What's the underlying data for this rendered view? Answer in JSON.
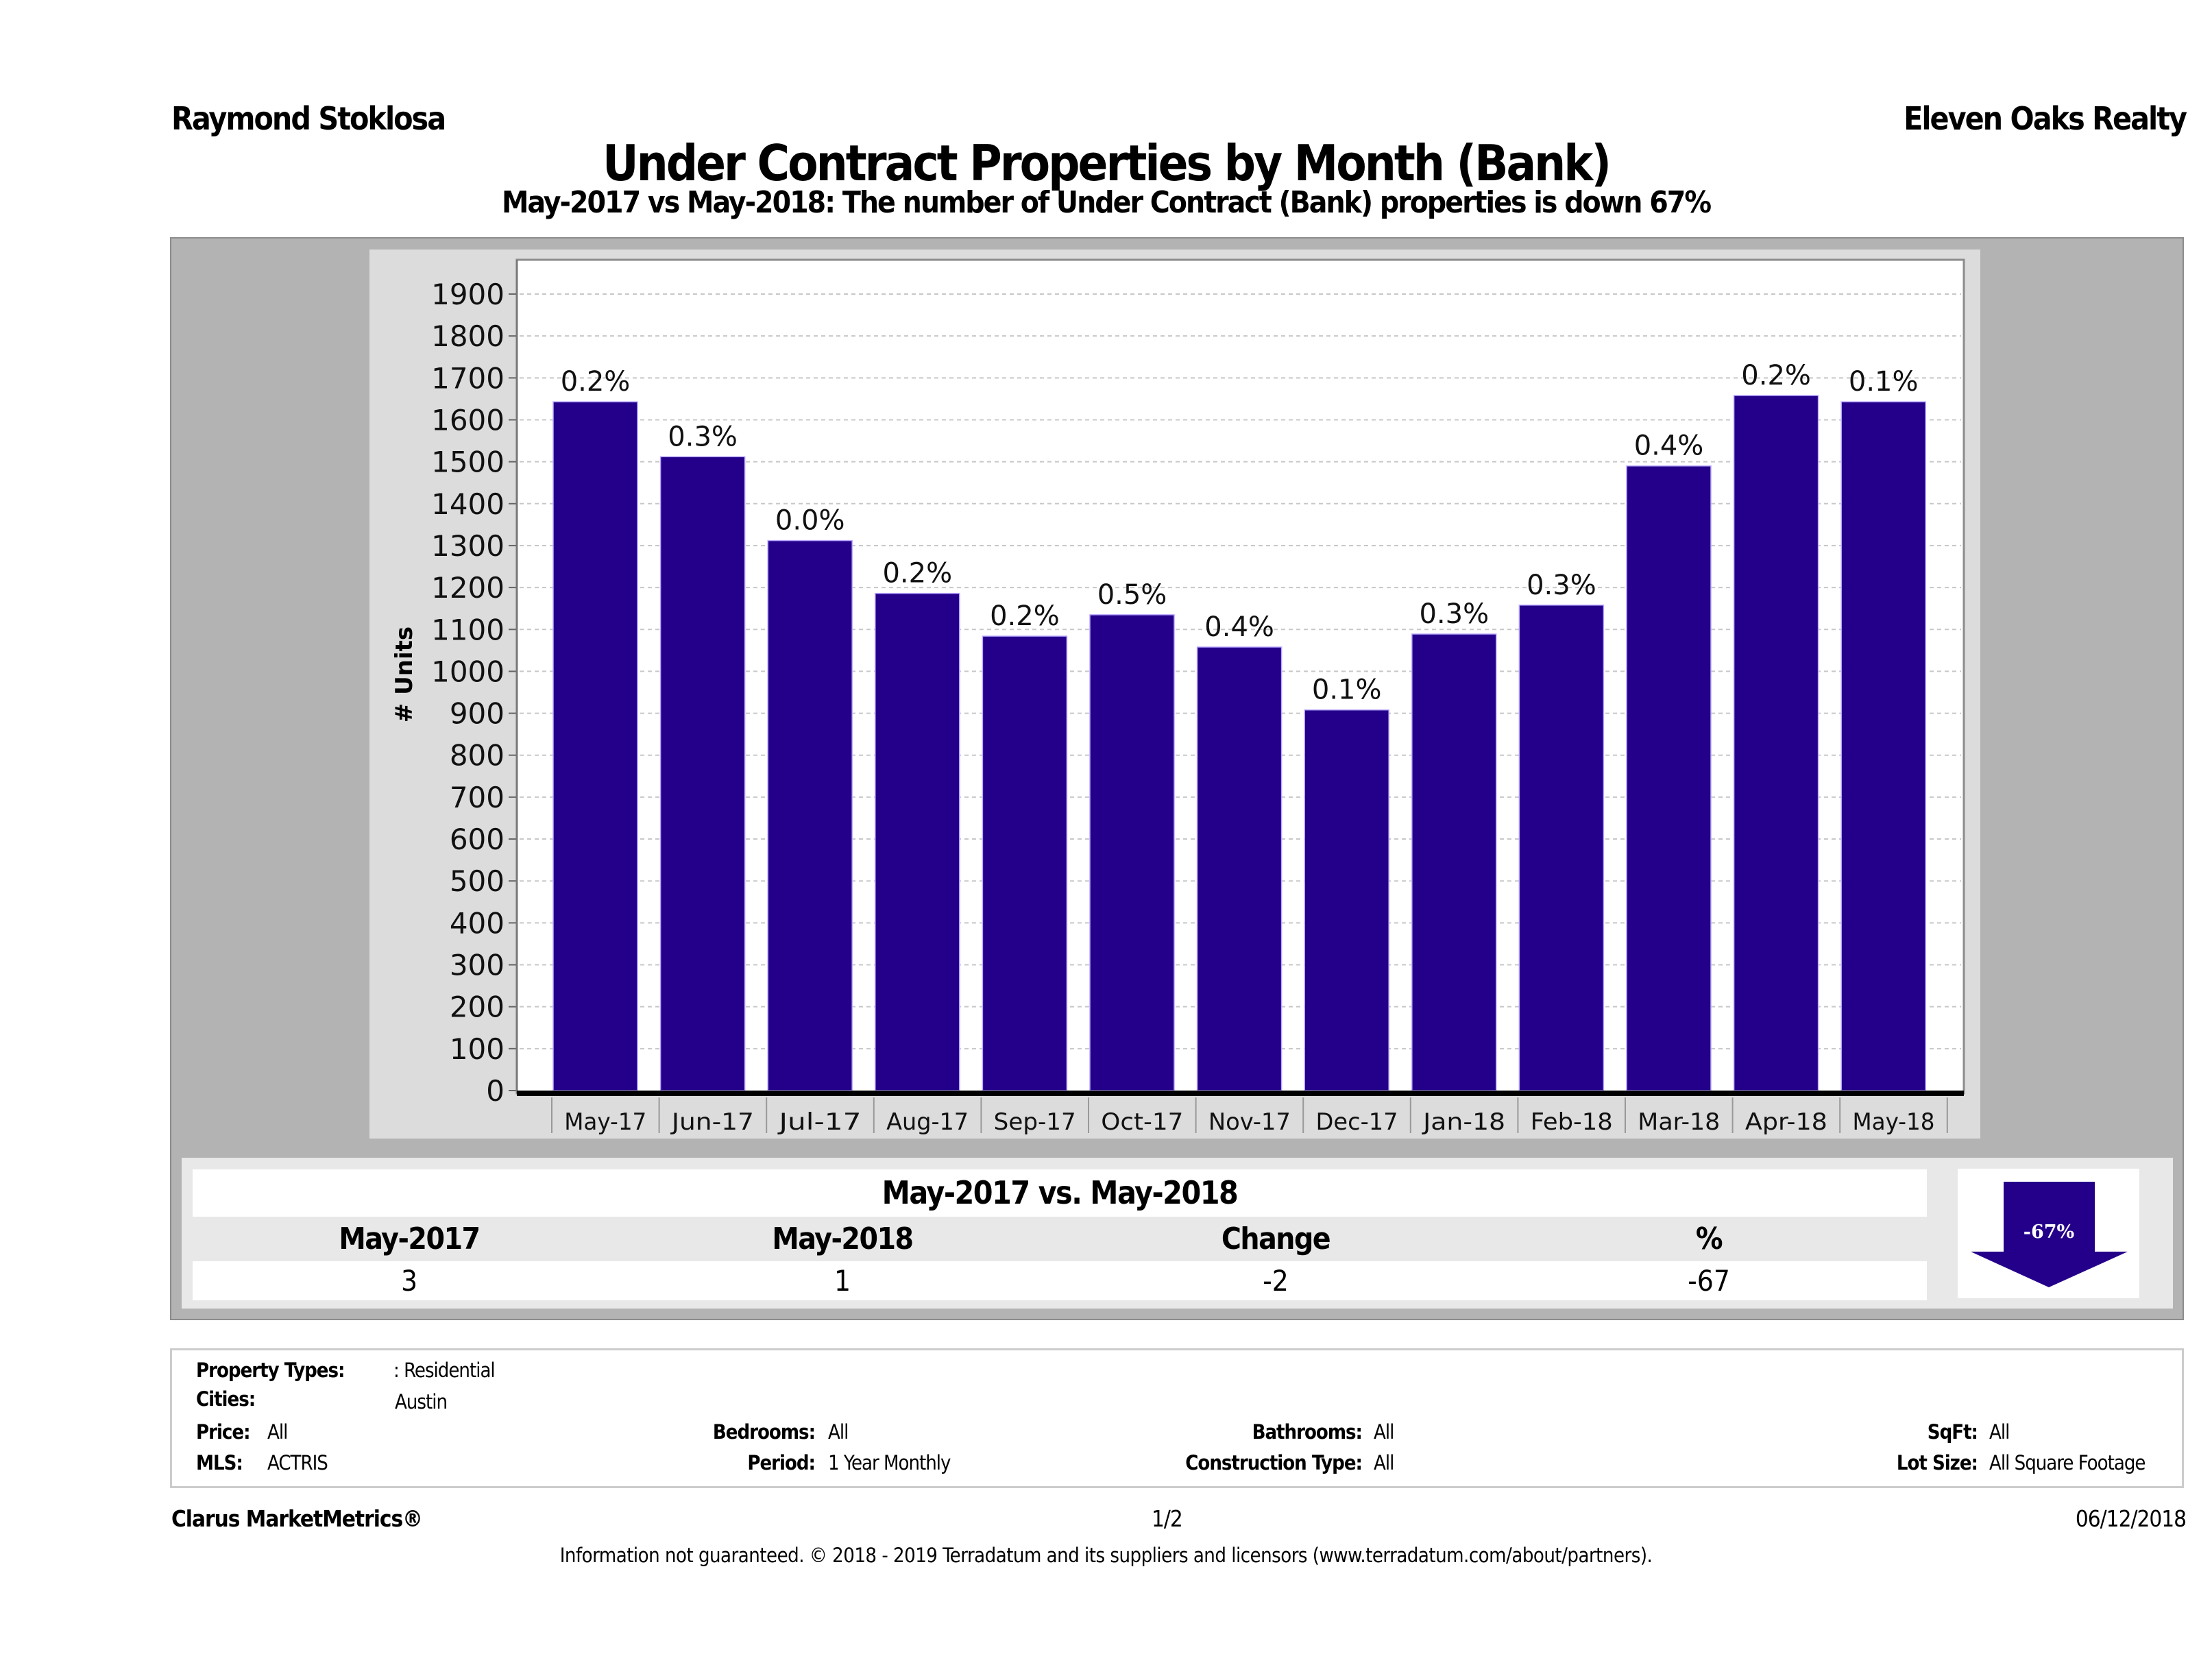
{
  "header": {
    "agent_name": "Raymond Stoklosa",
    "company_name": "Eleven Oaks Realty",
    "title": "Under Contract Properties by Month (Bank)",
    "subtitle": "May-2017 vs May-2018: The number of Under Contract (Bank)  properties is down 67%"
  },
  "colors": {
    "bar": "#24008a",
    "bar_edge": "#b9a8ff",
    "frame": "#b3b3b3",
    "panel": "#dcdcdc",
    "plot_bg": "#ffffff"
  },
  "chart_data": {
    "type": "bar",
    "title": "Under Contract Properties by Month (Bank)",
    "xlabel": "",
    "ylabel": "# Units",
    "ylim": [
      0,
      1950
    ],
    "yticks": [
      0,
      100,
      200,
      300,
      400,
      500,
      600,
      700,
      800,
      900,
      1000,
      1100,
      1200,
      1300,
      1400,
      1500,
      1600,
      1700,
      1800,
      1900
    ],
    "grid": true,
    "legend": "none",
    "categories": [
      "May-17",
      "Jun-17",
      "Jul-17",
      "Aug-17",
      "Sep-17",
      "Oct-17",
      "Nov-17",
      "Dec-17",
      "Jan-18",
      "Feb-18",
      "Mar-18",
      "Apr-18",
      "May-18"
    ],
    "values": [
      1643,
      1512,
      1312,
      1186,
      1084,
      1135,
      1058,
      908,
      1089,
      1158,
      1490,
      1658,
      1643
    ],
    "data_labels": [
      "0.2%",
      "0.3%",
      "0.0%",
      "0.2%",
      "0.2%",
      "0.5%",
      "0.4%",
      "0.1%",
      "0.3%",
      "0.3%",
      "0.4%",
      "0.2%",
      "0.1%"
    ]
  },
  "summary": {
    "title": "May-2017 vs. May-2018",
    "headers": [
      "May-2017",
      "May-2018",
      "Change",
      "%"
    ],
    "values": [
      "3",
      "1",
      "-2",
      "-67"
    ],
    "arrow_label": "-67%",
    "arrow_direction": "down"
  },
  "filters": {
    "property_types": {
      "label": "Property Types:",
      "value": ": Residential"
    },
    "cities": {
      "label": "Cities:",
      "value": "Austin"
    },
    "price": {
      "label": "Price:",
      "value": "All"
    },
    "mls": {
      "label": "MLS:",
      "value": "ACTRIS"
    },
    "bedrooms": {
      "label": "Bedrooms:",
      "value": "All"
    },
    "period": {
      "label": "Period:",
      "value": "1 Year Monthly"
    },
    "bathrooms": {
      "label": "Bathrooms:",
      "value": "All"
    },
    "construction_type": {
      "label": "Construction Type:",
      "value": "All"
    },
    "sqft": {
      "label": "SqFt:",
      "value": "All"
    },
    "lot_size": {
      "label": "Lot Size:",
      "value": "All Square Footage"
    }
  },
  "footer": {
    "brand": "Clarus MarketMetrics®",
    "page": "1/2",
    "date": "06/12/2018",
    "disclaimer": "Information not guaranteed. © 2018 - 2019 Terradatum and its suppliers and licensors (www.terradatum.com/about/partners)."
  }
}
